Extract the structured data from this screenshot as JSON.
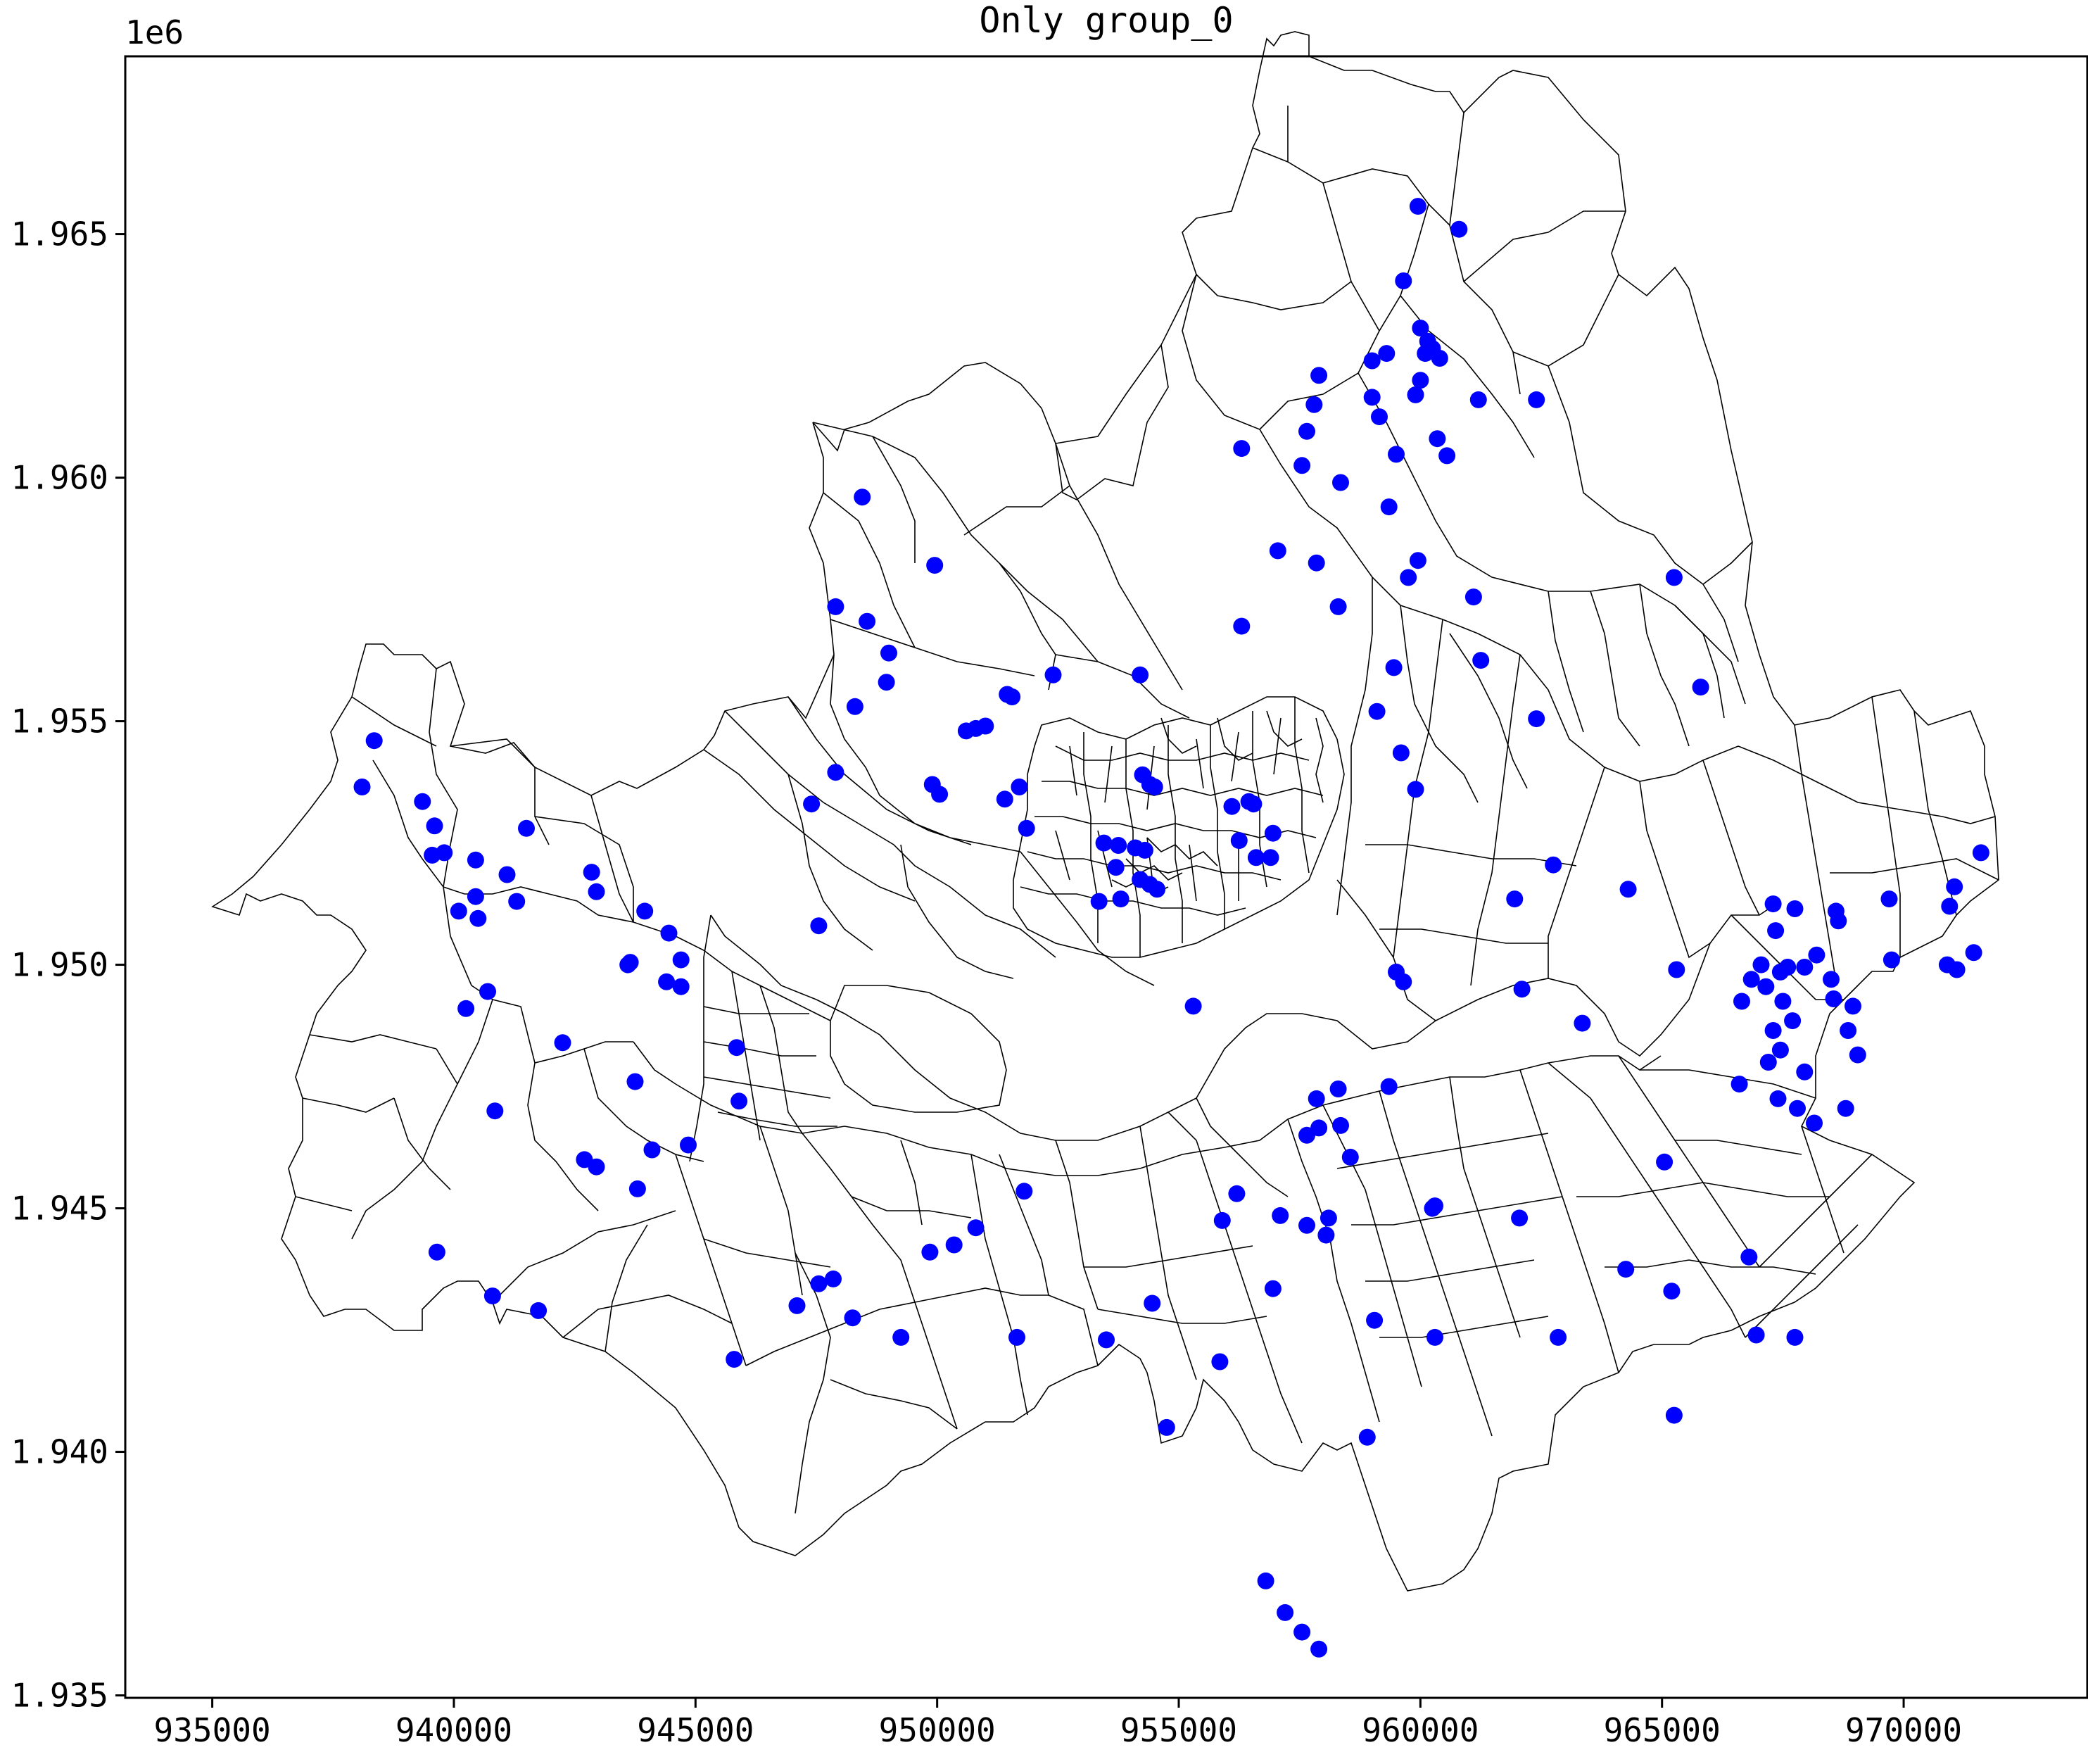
{
  "chart_data": {
    "type": "scatter",
    "title": "Only group_0",
    "xlabel": "",
    "ylabel": "",
    "y_offset_label": "1e6",
    "xlim": [
      933200,
      973800
    ],
    "ylim": [
      1934950,
      1968650
    ],
    "x_ticks": [
      935000,
      940000,
      945000,
      950000,
      955000,
      960000,
      965000,
      970000
    ],
    "x_tick_labels": [
      "935000",
      "940000",
      "945000",
      "950000",
      "955000",
      "960000",
      "965000",
      "970000"
    ],
    "y_ticks": [
      1935000,
      1940000,
      1945000,
      1950000,
      1955000,
      1960000,
      1965000
    ],
    "y_tick_labels": [
      "1.935",
      "1.940",
      "1.945",
      "1.950",
      "1.955",
      "1.960",
      "1.965"
    ],
    "grid": false,
    "legend": "none",
    "marker_color": "#0000ff",
    "boundary_color": "#000000",
    "series": [
      {
        "points": [
          [
            959950,
            1965570
          ],
          [
            960800,
            1965100
          ],
          [
            959650,
            1964040
          ],
          [
            960000,
            1963070
          ],
          [
            960150,
            1962800
          ],
          [
            960250,
            1962650
          ],
          [
            960100,
            1962550
          ],
          [
            960400,
            1962450
          ],
          [
            959300,
            1962550
          ],
          [
            959000,
            1962400
          ],
          [
            957900,
            1962100
          ],
          [
            960000,
            1962000
          ],
          [
            959900,
            1961700
          ],
          [
            959000,
            1961650
          ],
          [
            957800,
            1961500
          ],
          [
            959150,
            1961250
          ],
          [
            961200,
            1961600
          ],
          [
            962400,
            1961600
          ],
          [
            957650,
            1960950
          ],
          [
            960350,
            1960800
          ],
          [
            960550,
            1960450
          ],
          [
            956300,
            1960600
          ],
          [
            957550,
            1960250
          ],
          [
            959500,
            1960480
          ],
          [
            958350,
            1959900
          ],
          [
            959350,
            1959400
          ],
          [
            959950,
            1958300
          ],
          [
            959750,
            1957950
          ],
          [
            957050,
            1958500
          ],
          [
            957850,
            1958250
          ],
          [
            961100,
            1957550
          ],
          [
            958300,
            1957350
          ],
          [
            956300,
            1956950
          ],
          [
            961250,
            1956250
          ],
          [
            959450,
            1956100
          ],
          [
            959100,
            1955200
          ],
          [
            962400,
            1955050
          ],
          [
            959600,
            1954350
          ],
          [
            959900,
            1953600
          ],
          [
            965250,
            1957950
          ],
          [
            965800,
            1955700
          ],
          [
            948450,
            1959600
          ],
          [
            949950,
            1958200
          ],
          [
            947900,
            1957350
          ],
          [
            948550,
            1957050
          ],
          [
            949000,
            1956400
          ],
          [
            948950,
            1955800
          ],
          [
            948300,
            1955300
          ],
          [
            947900,
            1953950
          ],
          [
            947400,
            1953300
          ],
          [
            949900,
            1953700
          ],
          [
            950050,
            1953500
          ],
          [
            950600,
            1954800
          ],
          [
            950800,
            1954850
          ],
          [
            951000,
            1954900
          ],
          [
            951450,
            1955550
          ],
          [
            951550,
            1955500
          ],
          [
            952400,
            1955950
          ],
          [
            954200,
            1955950
          ],
          [
            951700,
            1953650
          ],
          [
            951400,
            1953400
          ],
          [
            951850,
            1952800
          ],
          [
            947550,
            1950800
          ],
          [
            954250,
            1953900
          ],
          [
            954400,
            1953700
          ],
          [
            954500,
            1953650
          ],
          [
            956100,
            1953250
          ],
          [
            956450,
            1953350
          ],
          [
            956550,
            1953300
          ],
          [
            956950,
            1952700
          ],
          [
            956250,
            1952550
          ],
          [
            956600,
            1952200
          ],
          [
            956900,
            1952200
          ],
          [
            953450,
            1952500
          ],
          [
            953750,
            1952450
          ],
          [
            954100,
            1952400
          ],
          [
            954300,
            1952350
          ],
          [
            953700,
            1952000
          ],
          [
            954200,
            1951750
          ],
          [
            954400,
            1951650
          ],
          [
            954550,
            1951550
          ],
          [
            953350,
            1951300
          ],
          [
            953800,
            1951350
          ],
          [
            955300,
            1949150
          ],
          [
            938350,
            1954600
          ],
          [
            938100,
            1953650
          ],
          [
            939350,
            1953350
          ],
          [
            939600,
            1952850
          ],
          [
            939550,
            1952250
          ],
          [
            939800,
            1952300
          ],
          [
            940450,
            1952150
          ],
          [
            941500,
            1952800
          ],
          [
            941100,
            1951850
          ],
          [
            940450,
            1951400
          ],
          [
            941300,
            1951300
          ],
          [
            940100,
            1951100
          ],
          [
            940500,
            1950950
          ],
          [
            942850,
            1951900
          ],
          [
            942950,
            1951500
          ],
          [
            943950,
            1951100
          ],
          [
            944450,
            1950650
          ],
          [
            944700,
            1950100
          ],
          [
            943650,
            1950050
          ],
          [
            943600,
            1950000
          ],
          [
            944400,
            1949650
          ],
          [
            944700,
            1949550
          ],
          [
            940700,
            1949450
          ],
          [
            940250,
            1949100
          ],
          [
            942250,
            1948400
          ],
          [
            945850,
            1948300
          ],
          [
            940850,
            1947000
          ],
          [
            943750,
            1947600
          ],
          [
            945900,
            1947200
          ],
          [
            942700,
            1946000
          ],
          [
            942950,
            1945850
          ],
          [
            944100,
            1946200
          ],
          [
            944850,
            1946300
          ],
          [
            943800,
            1945400
          ],
          [
            939650,
            1944100
          ],
          [
            940800,
            1943200
          ],
          [
            941750,
            1942900
          ],
          [
            945800,
            1941900
          ],
          [
            947100,
            1943000
          ],
          [
            947550,
            1943450
          ],
          [
            947850,
            1943550
          ],
          [
            948250,
            1942750
          ],
          [
            949250,
            1942350
          ],
          [
            949850,
            1944100
          ],
          [
            950350,
            1944250
          ],
          [
            950800,
            1944600
          ],
          [
            951800,
            1945350
          ],
          [
            951650,
            1942350
          ],
          [
            953500,
            1942300
          ],
          [
            954450,
            1943050
          ],
          [
            954750,
            1940500
          ],
          [
            955850,
            1941850
          ],
          [
            955900,
            1944750
          ],
          [
            956200,
            1945300
          ],
          [
            957100,
            1944850
          ],
          [
            956950,
            1943350
          ],
          [
            957650,
            1944650
          ],
          [
            958100,
            1944800
          ],
          [
            958050,
            1944450
          ],
          [
            958900,
            1940300
          ],
          [
            959050,
            1942700
          ],
          [
            960250,
            1945000
          ],
          [
            960300,
            1945050
          ],
          [
            960300,
            1942350
          ],
          [
            962050,
            1944800
          ],
          [
            962850,
            1942350
          ],
          [
            964250,
            1943750
          ],
          [
            965200,
            1943300
          ],
          [
            965250,
            1940750
          ],
          [
            965050,
            1945950
          ],
          [
            966800,
            1944000
          ],
          [
            966950,
            1942400
          ],
          [
            967750,
            1942350
          ],
          [
            957850,
            1947250
          ],
          [
            958300,
            1947450
          ],
          [
            959350,
            1947500
          ],
          [
            957650,
            1946500
          ],
          [
            957900,
            1946650
          ],
          [
            958350,
            1946700
          ],
          [
            958550,
            1946050
          ],
          [
            959500,
            1949850
          ],
          [
            959650,
            1949650
          ],
          [
            962100,
            1949500
          ],
          [
            963350,
            1948800
          ],
          [
            961950,
            1951350
          ],
          [
            962750,
            1952050
          ],
          [
            964300,
            1951550
          ],
          [
            965300,
            1949900
          ],
          [
            967300,
            1951250
          ],
          [
            967750,
            1951150
          ],
          [
            968600,
            1951100
          ],
          [
            968650,
            1950900
          ],
          [
            967350,
            1950700
          ],
          [
            969700,
            1951350
          ],
          [
            971050,
            1951600
          ],
          [
            970950,
            1951200
          ],
          [
            971600,
            1952300
          ],
          [
            971450,
            1950250
          ],
          [
            970900,
            1950000
          ],
          [
            971100,
            1949900
          ],
          [
            969750,
            1950100
          ],
          [
            967050,
            1950000
          ],
          [
            967600,
            1949950
          ],
          [
            967450,
            1949850
          ],
          [
            966850,
            1949700
          ],
          [
            967150,
            1949550
          ],
          [
            968200,
            1950200
          ],
          [
            967950,
            1949950
          ],
          [
            968500,
            1949700
          ],
          [
            966650,
            1949250
          ],
          [
            967500,
            1949250
          ],
          [
            968550,
            1949300
          ],
          [
            968950,
            1949150
          ],
          [
            967700,
            1948850
          ],
          [
            967300,
            1948650
          ],
          [
            968850,
            1948650
          ],
          [
            967450,
            1948250
          ],
          [
            969050,
            1948150
          ],
          [
            967200,
            1948000
          ],
          [
            967950,
            1947800
          ],
          [
            966600,
            1947550
          ],
          [
            967400,
            1947250
          ],
          [
            967800,
            1947050
          ],
          [
            968150,
            1946750
          ],
          [
            968800,
            1947050
          ]
        ]
      },
      {
        "points": [
          [
            956800,
            1937350
          ],
          [
            957200,
            1936700
          ],
          [
            957550,
            1936300
          ],
          [
            957900,
            1935950
          ]
        ]
      }
    ]
  }
}
